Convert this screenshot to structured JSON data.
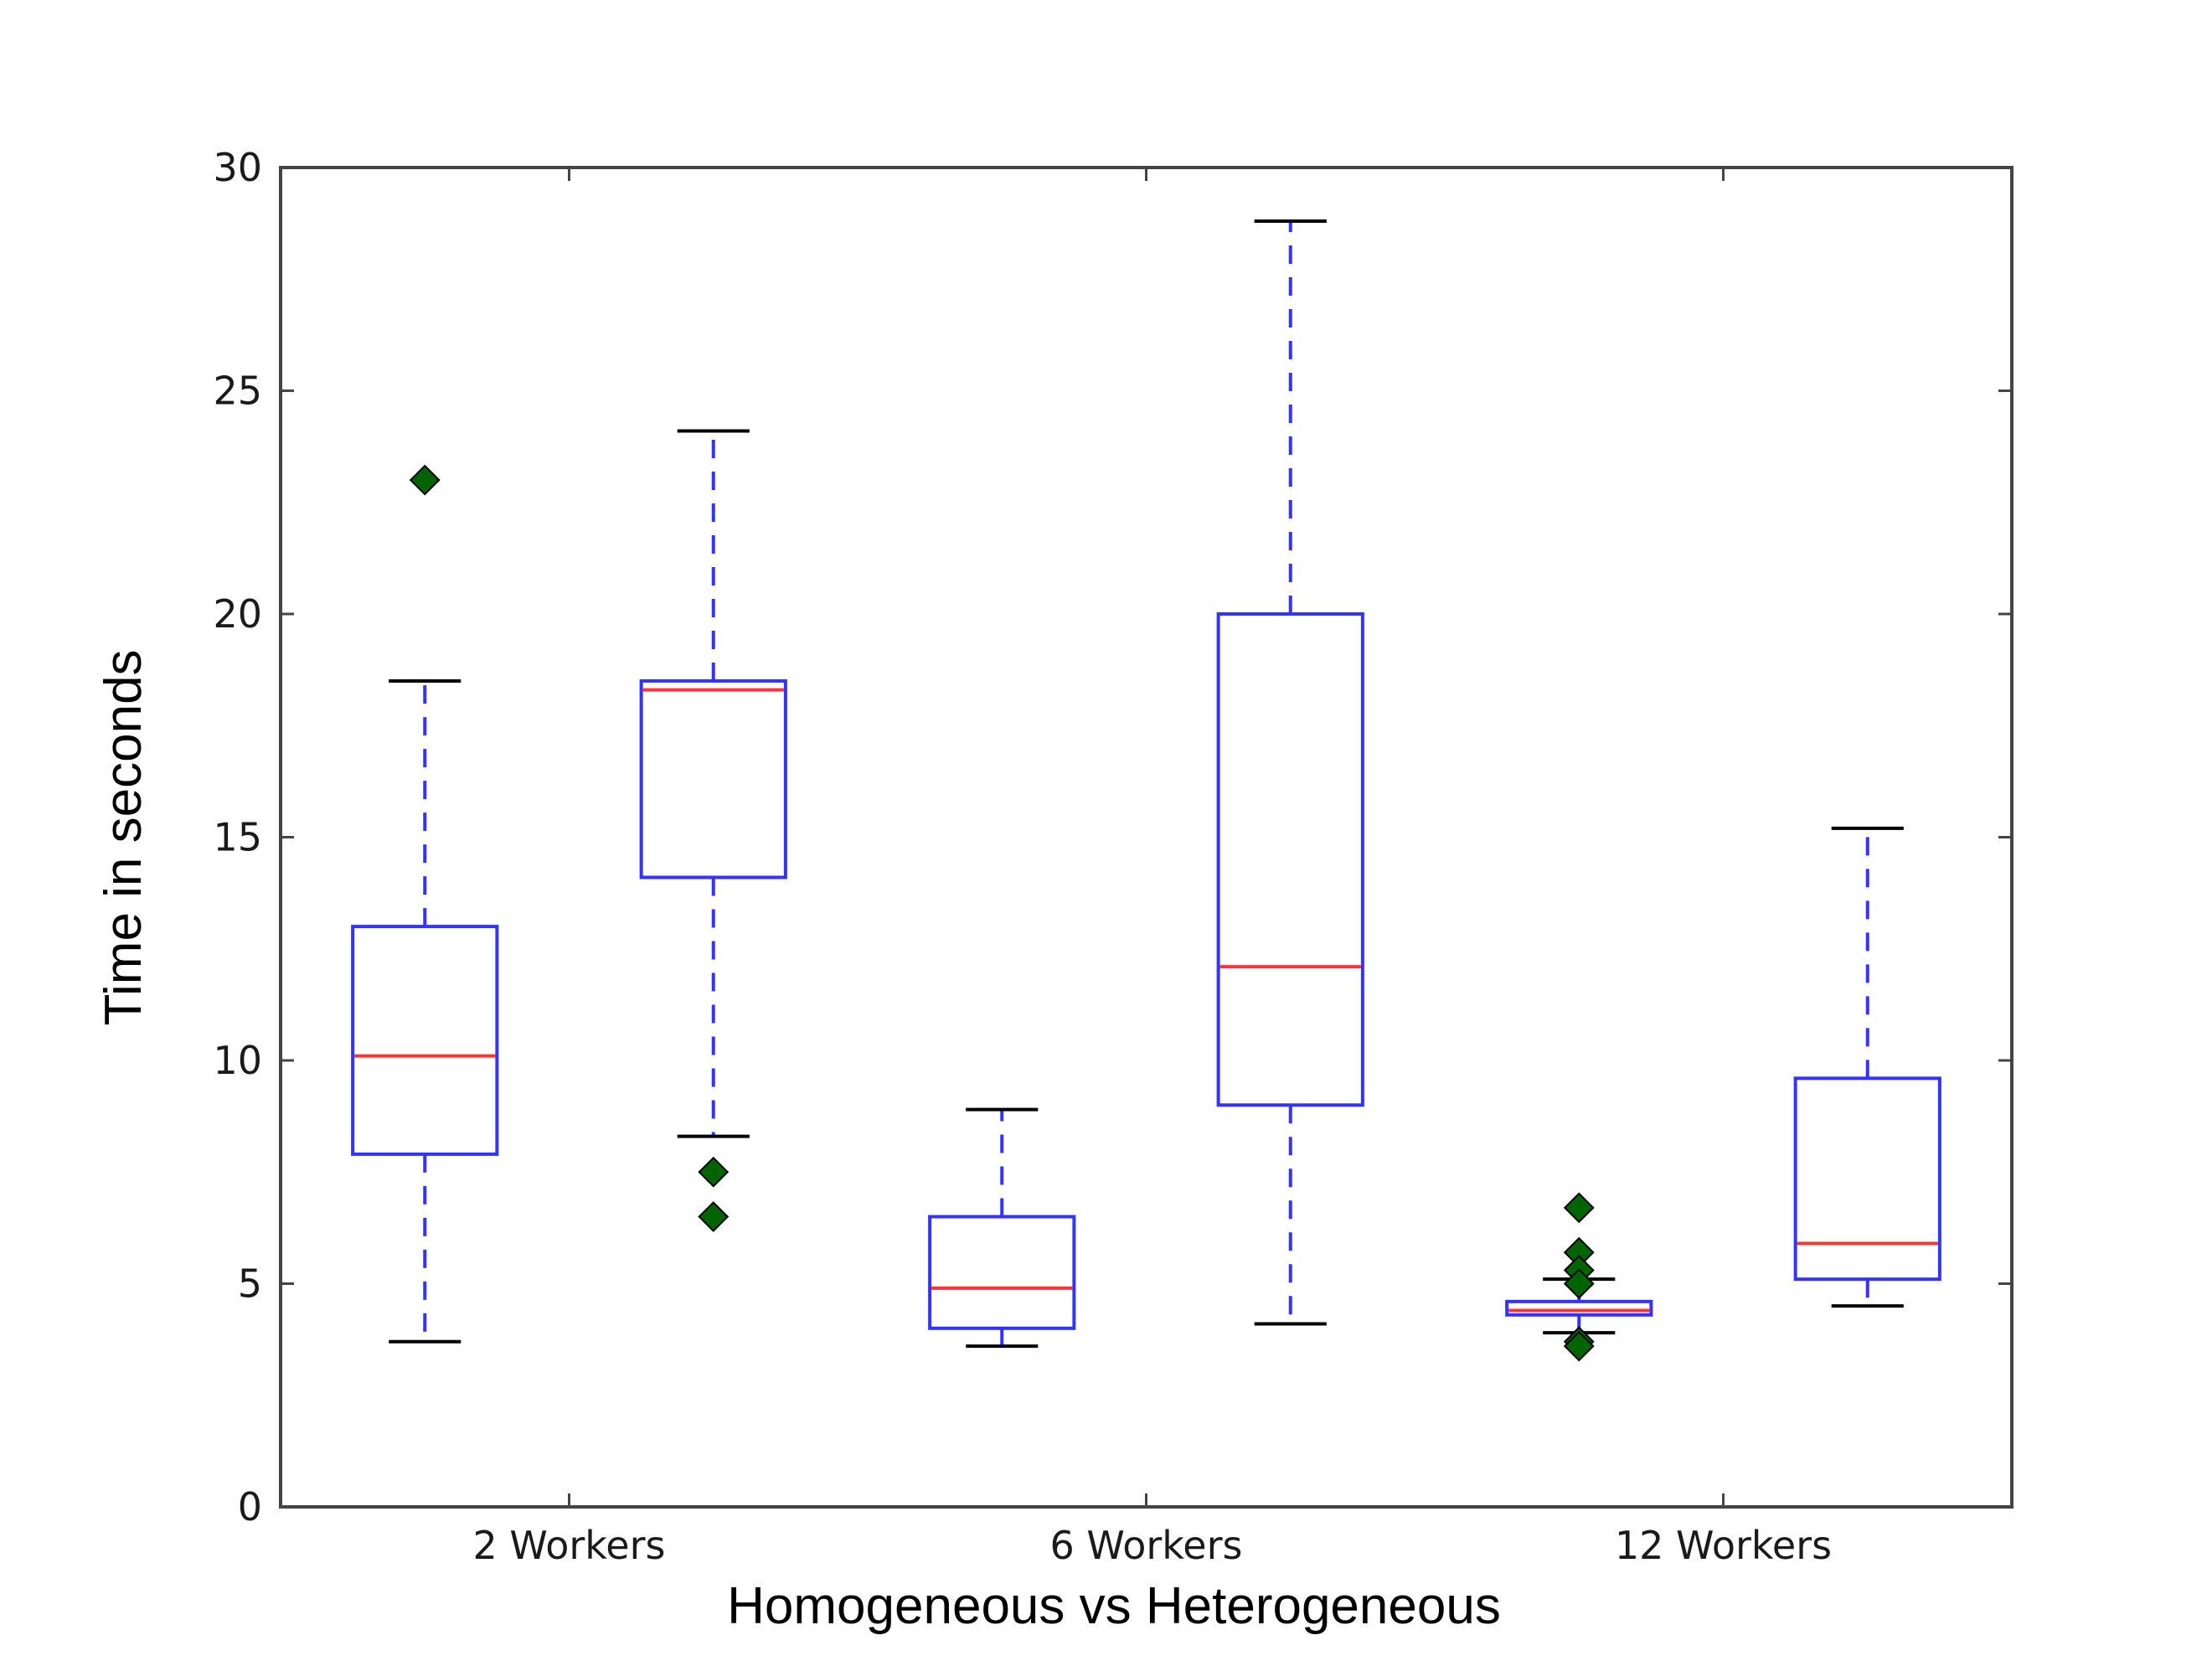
{
  "chart_data": {
    "type": "box",
    "title": "",
    "xlabel": "Homogeneous vs  Heterogeneous",
    "ylabel": "Time in seconds",
    "ylim": [
      0,
      30
    ],
    "yticks": [
      0,
      5,
      10,
      15,
      20,
      25,
      30
    ],
    "xtick_labels": [
      "2 Workers",
      "6 Workers",
      "12 Workers"
    ],
    "grid": false,
    "colors": {
      "box": "#3333ff",
      "median": "#ff3333",
      "whisker_cap": "#000000",
      "outlier": "#006400",
      "frame": "#444444"
    },
    "boxes": [
      {
        "group": "2 Workers",
        "whisker_low": 3.7,
        "q1": 7.9,
        "median": 10.1,
        "q3": 13.0,
        "whisker_high": 18.5,
        "outliers": [
          23.0
        ]
      },
      {
        "group": "2 Workers",
        "whisker_low": 8.3,
        "q1": 14.1,
        "median": 18.3,
        "q3": 18.5,
        "whisker_high": 24.1,
        "outliers": [
          7.5,
          6.5
        ]
      },
      {
        "group": "6 Workers",
        "whisker_low": 3.6,
        "q1": 4.0,
        "median": 4.9,
        "q3": 6.5,
        "whisker_high": 8.9,
        "outliers": []
      },
      {
        "group": "6 Workers",
        "whisker_low": 4.1,
        "q1": 9.0,
        "median": 12.1,
        "q3": 20.0,
        "whisker_high": 28.8,
        "outliers": []
      },
      {
        "group": "12 Workers",
        "whisker_low": 3.9,
        "q1": 4.3,
        "median": 4.4,
        "q3": 4.6,
        "whisker_high": 5.1,
        "outliers": [
          6.7,
          5.7,
          5.3,
          5.0,
          3.7,
          3.6
        ]
      },
      {
        "group": "12 Workers",
        "whisker_low": 4.5,
        "q1": 5.1,
        "median": 5.9,
        "q3": 9.6,
        "whisker_high": 15.2,
        "outliers": []
      }
    ]
  }
}
